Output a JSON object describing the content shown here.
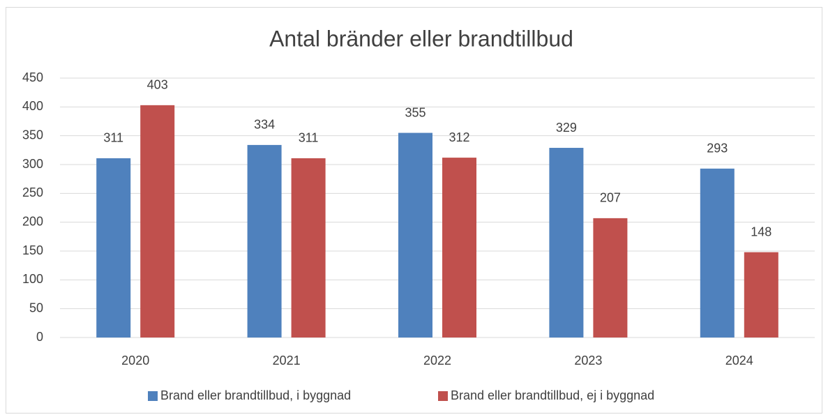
{
  "chart_data": {
    "type": "bar",
    "title": "Antal bränder eller brandtillbud",
    "categories": [
      "2020",
      "2021",
      "2022",
      "2023",
      "2024"
    ],
    "series": [
      {
        "name": "Brand eller brandtillbud, i byggnad",
        "color": "#4f81bd",
        "values": [
          311,
          334,
          355,
          329,
          293
        ]
      },
      {
        "name": "Brand eller brandtillbud, ej i byggnad",
        "color": "#c0504d",
        "values": [
          403,
          311,
          312,
          207,
          148
        ]
      }
    ],
    "ylim": [
      0,
      450
    ],
    "yticks": [
      0,
      50,
      100,
      150,
      200,
      250,
      300,
      350,
      400,
      450
    ],
    "grid": true,
    "legend": "bottom"
  }
}
